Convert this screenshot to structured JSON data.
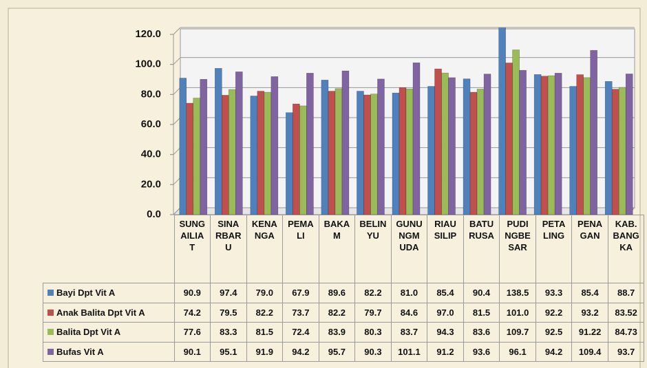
{
  "chart_data": {
    "type": "bar",
    "categories": [
      "SUNGAILIAT",
      "SINARBARU",
      "KENANGA",
      "PEMALI",
      "BAKAM",
      "BELINYU",
      "GUNUNGMUDA",
      "RIAUSILIP",
      "BATURUSA",
      "PUDINGBESAR",
      "PETALING",
      "PENAGAN",
      "KAB.BANGKA"
    ],
    "series": [
      {
        "name": "Bayi Dpt Vit A",
        "color": "#4f81bd",
        "values": [
          90.9,
          97.4,
          79.0,
          67.9,
          89.6,
          82.2,
          81.0,
          85.4,
          90.4,
          138.5,
          93.3,
          85.4,
          88.7
        ],
        "value_labels": [
          "90.9",
          "97.4",
          "79.0",
          "67.9",
          "89.6",
          "82.2",
          "81.0",
          "85.4",
          "90.4",
          "138.5",
          "93.3",
          "85.4",
          "88.7"
        ]
      },
      {
        "name": "Anak Balita Dpt Vit A",
        "color": "#c0504d",
        "values": [
          74.2,
          79.5,
          82.2,
          73.7,
          82.2,
          79.7,
          84.6,
          97.0,
          81.5,
          101.0,
          92.2,
          93.2,
          83.52
        ],
        "value_labels": [
          "74.2",
          "79.5",
          "82.2",
          "73.7",
          "82.2",
          "79.7",
          "84.6",
          "97.0",
          "81.5",
          "101.0",
          "92.2",
          "93.2",
          "83.52"
        ]
      },
      {
        "name": "Balita Dpt Vit A",
        "color": "#9bbb59",
        "values": [
          77.6,
          83.3,
          81.5,
          72.4,
          83.9,
          80.3,
          83.7,
          94.3,
          83.6,
          109.7,
          92.5,
          91.22,
          84.73
        ],
        "value_labels": [
          "77.6",
          "83.3",
          "81.5",
          "72.4",
          "83.9",
          "80.3",
          "83.7",
          "94.3",
          "83.6",
          "109.7",
          "92.5",
          "91.22",
          "84.73"
        ]
      },
      {
        "name": "Bufas Vit A",
        "color": "#8064a2",
        "values": [
          90.1,
          95.1,
          91.9,
          94.2,
          95.7,
          90.3,
          101.1,
          91.2,
          93.6,
          96.1,
          94.2,
          109.4,
          93.7
        ],
        "value_labels": [
          "90.1",
          "95.1",
          "91.9",
          "94.2",
          "95.7",
          "90.3",
          "101.1",
          "91.2",
          "93.6",
          "96.1",
          "94.2",
          "109.4",
          "93.7"
        ]
      }
    ],
    "ylim": [
      0,
      120
    ],
    "yticks": [
      {
        "value": 0,
        "label": "0.0"
      },
      {
        "value": 20,
        "label": "20.0"
      },
      {
        "value": 40,
        "label": "40.0"
      },
      {
        "value": 60,
        "label": "60.0"
      },
      {
        "value": 80,
        "label": "80.0"
      },
      {
        "value": 100,
        "label": "100.0"
      },
      {
        "value": 120,
        "label": "120.0"
      }
    ],
    "grid": true
  }
}
